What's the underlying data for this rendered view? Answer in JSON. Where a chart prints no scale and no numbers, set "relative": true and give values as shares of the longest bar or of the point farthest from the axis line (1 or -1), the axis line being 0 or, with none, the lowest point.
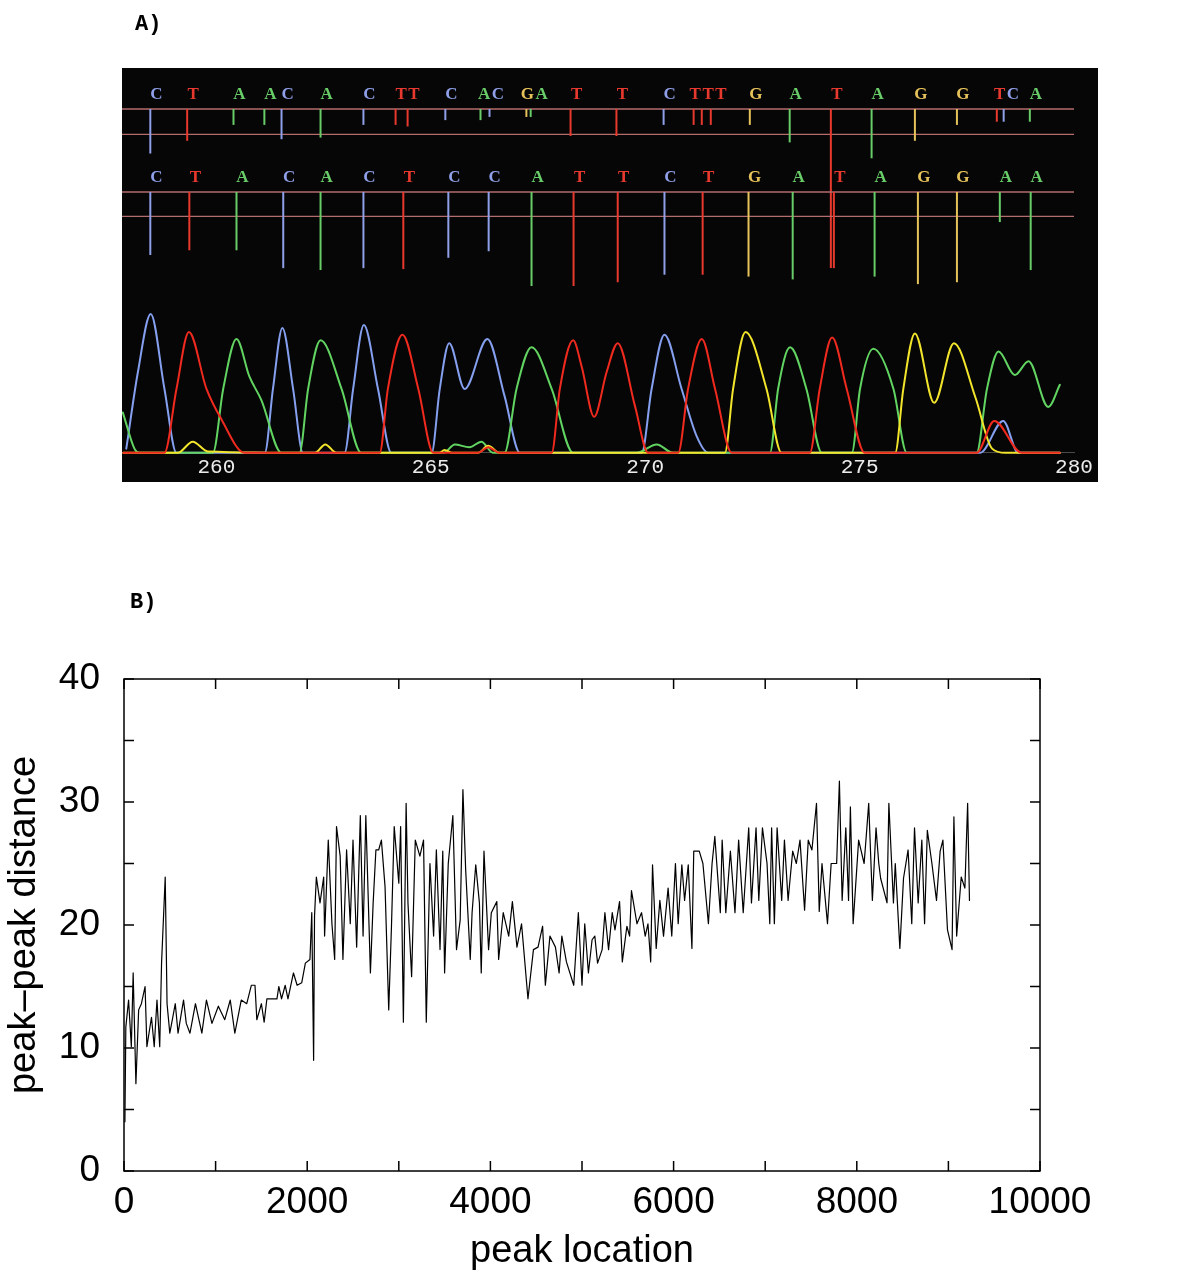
{
  "chart_data": [
    {
      "type": "bar",
      "title": "A)",
      "relative": true,
      "x": [
        258.46,
        259.32,
        260.4,
        261.12,
        261.52,
        262.43,
        263.43,
        264.18,
        264.46,
        265.34,
        266.16,
        266.37,
        267.23,
        267.33,
        268.26,
        269.33,
        270.43,
        271.13,
        271.32,
        271.53,
        272.44,
        273.37,
        274.33,
        275.28,
        276.29,
        277.27,
        278.2,
        278.36,
        278.97
      ],
      "values": [
        -0.28,
        -0.2,
        -0.1,
        -0.1,
        -0.19,
        -0.18,
        -0.1,
        -0.1,
        -0.11,
        -0.07,
        -0.07,
        -0.05,
        -0.05,
        -0.05,
        -0.17,
        -0.17,
        -0.1,
        -0.1,
        -0.1,
        -0.1,
        -0.1,
        -0.21,
        -1,
        -0.31,
        -0.2,
        -0.1,
        -0.08,
        -0.08,
        -0.08
      ],
      "colors": [
        "#8f9fe8",
        "#e8392e",
        "#68cc68",
        "#68cc68",
        "#8f9fe8",
        "#68cc68",
        "#8f9fe8",
        "#e8392e",
        "#e8392e",
        "#8f9fe8",
        "#68cc68",
        "#8f9fe8",
        "#e6c25a",
        "#68cc68",
        "#e8392e",
        "#e8392e",
        "#8f9fe8",
        "#e8392e",
        "#e8392e",
        "#e8392e",
        "#e6c25a",
        "#68cc68",
        "#e8392e",
        "#68cc68",
        "#e6c25a",
        "#e6c25a",
        "#e8392e",
        "#8f9fe8",
        "#68cc68"
      ],
      "xlim": [
        257.8,
        280
      ],
      "xticks": [
        260,
        265,
        270,
        275,
        280
      ],
      "tick_labels": false,
      "ref_lines": [
        {
          "axis": "y",
          "value": -0.16,
          "color": "#b46c6c"
        }
      ],
      "annotations": [
        "C",
        "T",
        "A",
        "A",
        "C",
        "A",
        "C",
        "T",
        "T",
        "C",
        "A",
        "C",
        "G",
        "A",
        "T",
        "T",
        "C",
        "T",
        "T",
        "T",
        "G",
        "A",
        "T",
        "A",
        "G",
        "G",
        "T",
        "C",
        "A"
      ]
    },
    {
      "type": "bar",
      "relative": true,
      "x": [
        258.46,
        259.37,
        260.47,
        261.56,
        262.43,
        263.43,
        264.36,
        265.41,
        266.35,
        267.35,
        268.33,
        269.36,
        270.45,
        271.34,
        272.41,
        273.44,
        274.4,
        275.35,
        276.36,
        277.27,
        278.27,
        278.99
      ],
      "values": [
        -0.67,
        -0.62,
        -0.62,
        -0.81,
        -0.83,
        -0.81,
        -0.82,
        -0.7,
        -0.63,
        -1,
        -1,
        -0.96,
        -0.88,
        -0.88,
        -0.9,
        -0.93,
        -0.81,
        -0.9,
        -0.98,
        -0.96,
        -0.32,
        -0.83
      ],
      "colors": [
        "#8f9fe8",
        "#e8392e",
        "#68cc68",
        "#8f9fe8",
        "#68cc68",
        "#8f9fe8",
        "#e8392e",
        "#8f9fe8",
        "#8f9fe8",
        "#68cc68",
        "#e8392e",
        "#e8392e",
        "#8f9fe8",
        "#e8392e",
        "#e6c25a",
        "#68cc68",
        "#e8392e",
        "#68cc68",
        "#e6c25a",
        "#e6c25a",
        "#68cc68",
        "#68cc68"
      ],
      "xlim": [
        257.8,
        280
      ],
      "xticks": [
        260,
        265,
        270,
        275,
        280
      ],
      "tick_labels": false,
      "ref_lines": [
        {
          "axis": "y",
          "value": -0.26,
          "color": "#b46c6c"
        }
      ],
      "annotations": [
        "C",
        "T",
        "A",
        "C",
        "A",
        "C",
        "T",
        "C",
        "C",
        "A",
        "T",
        "T",
        "C",
        "T",
        "G",
        "A",
        "T",
        "A",
        "G",
        "G",
        "A",
        "A"
      ]
    },
    {
      "type": "line",
      "relative": true,
      "xlim": [
        257.8,
        280
      ],
      "xticks": [
        260,
        265,
        270,
        275,
        280
      ],
      "tick_labels": "x",
      "series": [
        {
          "color": "#86a0f0",
          "x": [
            257.9,
            258.17,
            258.47,
            258.79,
            259.07,
            261.13,
            261.32,
            261.54,
            261.79,
            262.02,
            262.99,
            263.19,
            263.44,
            263.77,
            264.08,
            265.02,
            265.21,
            265.43,
            265.79,
            266.32,
            266.72,
            267.08,
            269.92,
            270.15,
            270.45,
            270.85,
            271.2,
            271.47,
            277.81,
            278.35,
            278.7,
            279.67
          ],
          "values": [
            0.03,
            0.58,
            1,
            0.46,
            0,
            0,
            0.46,
            0.9,
            0.46,
            0,
            0,
            0.46,
            0.92,
            0.46,
            0,
            0,
            0.46,
            0.79,
            0.46,
            0.82,
            0.41,
            0,
            0,
            0.46,
            0.85,
            0.46,
            0.12,
            0,
            0,
            0.23,
            0,
            0
          ]
        },
        {
          "color": "#62d462",
          "x": [
            257.82,
            258.09,
            258.2,
            259.92,
            260.16,
            260.47,
            260.77,
            261.05,
            261.52,
            261.94,
            262.14,
            262.43,
            262.92,
            263.38,
            265.3,
            265.56,
            265.9,
            266.18,
            266.45,
            266.72,
            267,
            267.35,
            267.82,
            268.32,
            269.8,
            270.27,
            270.65,
            272.91,
            273.1,
            273.38,
            273.76,
            274.12,
            274.82,
            275.01,
            275.32,
            275.79,
            276.1,
            277.73,
            277.97,
            278.24,
            278.62,
            278.94,
            279.4,
            279.67
          ],
          "values": [
            0.29,
            0.03,
            0,
            0,
            0.46,
            0.82,
            0.55,
            0.38,
            0,
            0,
            0.46,
            0.81,
            0.46,
            0,
            0,
            0.06,
            0.04,
            0.08,
            0,
            0,
            0.46,
            0.76,
            0.46,
            0,
            0,
            0.06,
            0,
            0,
            0.46,
            0.76,
            0.46,
            0,
            0,
            0.46,
            0.75,
            0.46,
            0,
            0,
            0.46,
            0.73,
            0.56,
            0.66,
            0.33,
            0.49
          ]
        },
        {
          "color": "#f2e52c",
          "x": [
            257.83,
            259.1,
            259.45,
            259.8,
            262.3,
            262.54,
            262.8,
            265.2,
            265.32,
            265.5,
            266.1,
            266.34,
            266.6,
            271.86,
            272.05,
            272.34,
            272.83,
            273.18,
            275.83,
            276.02,
            276.29,
            276.74,
            277.2,
            277.7,
            278.09,
            278.4,
            279.67
          ],
          "values": [
            0,
            0,
            0.08,
            0.01,
            0,
            0.06,
            0,
            0,
            0.02,
            0,
            0,
            0.05,
            0,
            0,
            0.46,
            0.87,
            0.46,
            0,
            0,
            0.46,
            0.86,
            0.36,
            0.79,
            0.4,
            0.03,
            0,
            0
          ]
        },
        {
          "color": "#f02a1e",
          "x": [
            257.83,
            258.79,
            259.07,
            259.36,
            259.77,
            260.12,
            260.66,
            263.81,
            264,
            264.34,
            264.71,
            265.06,
            266.1,
            266.34,
            266.6,
            267.82,
            268.01,
            268.32,
            268.52,
            268.81,
            269.1,
            269.36,
            269.76,
            270.07,
            270.77,
            271,
            271.32,
            271.63,
            272.02,
            273.84,
            274.07,
            274.36,
            274.7,
            275.12,
            277.73,
            278.14,
            278.78,
            279.67
          ],
          "values": [
            0,
            0,
            0.46,
            0.87,
            0.46,
            0.24,
            0,
            0,
            0.46,
            0.85,
            0.46,
            0,
            0,
            0.04,
            0,
            0,
            0.46,
            0.81,
            0.62,
            0.26,
            0.58,
            0.79,
            0.34,
            0,
            0,
            0.46,
            0.82,
            0.46,
            0,
            0,
            0.46,
            0.83,
            0.46,
            0,
            0,
            0.23,
            0,
            0
          ]
        }
      ]
    },
    {
      "type": "line",
      "title": "B)",
      "xlabel": "peak location",
      "ylabel": "peak–peak distance",
      "color": "#000000",
      "xlim": [
        0,
        10000
      ],
      "ylim": [
        0,
        40
      ],
      "xticks": [
        0,
        {
          "value": 1000,
          "label": null
        },
        2000,
        {
          "value": 3000,
          "label": null
        },
        4000,
        {
          "value": 5000,
          "label": null
        },
        6000,
        {
          "value": 7000,
          "label": null
        },
        8000,
        {
          "value": 9000,
          "label": null
        },
        10000
      ],
      "yticks": [
        0,
        {
          "value": 5,
          "label": null
        },
        10,
        {
          "value": 15,
          "label": null
        },
        20,
        {
          "value": 25,
          "label": null
        },
        30,
        {
          "value": 35,
          "label": null
        },
        40
      ],
      "x": [
        10,
        20,
        50,
        80,
        100,
        130,
        160,
        190,
        230,
        250,
        300,
        330,
        360,
        390,
        410,
        450,
        470,
        500,
        560,
        590,
        650,
        680,
        720,
        780,
        850,
        900,
        960,
        1030,
        1100,
        1160,
        1210,
        1280,
        1340,
        1390,
        1430,
        1450,
        1500,
        1530,
        1560,
        1670,
        1690,
        1720,
        1760,
        1790,
        1850,
        1890,
        1940,
        1980,
        2030,
        2050,
        2070,
        2080,
        2100,
        2140,
        2180,
        2190,
        2230,
        2270,
        2300,
        2320,
        2360,
        2390,
        2430,
        2470,
        2500,
        2540,
        2580,
        2610,
        2640,
        2690,
        2720,
        2750,
        2780,
        2810,
        2850,
        2890,
        2920,
        2950,
        3000,
        3020,
        3050,
        3080,
        3100,
        3140,
        3180,
        3230,
        3270,
        3300,
        3340,
        3380,
        3410,
        3450,
        3480,
        3500,
        3540,
        3590,
        3630,
        3670,
        3700,
        3730,
        3780,
        3800,
        3840,
        3880,
        3900,
        3930,
        3980,
        4010,
        4070,
        4090,
        4140,
        4200,
        4240,
        4290,
        4340,
        4410,
        4470,
        4520,
        4570,
        4600,
        4650,
        4710,
        4750,
        4780,
        4830,
        4910,
        4960,
        5000,
        5030,
        5070,
        5110,
        5140,
        5170,
        5220,
        5250,
        5290,
        5330,
        5360,
        5410,
        5440,
        5490,
        5520,
        5540,
        5600,
        5650,
        5690,
        5720,
        5750,
        5770,
        5810,
        5850,
        5890,
        5940,
        5980,
        6020,
        6050,
        6090,
        6120,
        6160,
        6200,
        6220,
        6280,
        6320,
        6380,
        6420,
        6450,
        6510,
        6530,
        6570,
        6620,
        6670,
        6710,
        6760,
        6820,
        6850,
        6900,
        6930,
        6970,
        7020,
        7050,
        7070,
        7100,
        7130,
        7180,
        7210,
        7250,
        7300,
        7340,
        7380,
        7430,
        7470,
        7510,
        7560,
        7590,
        7620,
        7680,
        7720,
        7780,
        7810,
        7840,
        7880,
        7910,
        7930,
        7960,
        8020,
        8080,
        8110,
        8130,
        8170,
        8210,
        8240,
        8260,
        8330,
        8350,
        8400,
        8420,
        8470,
        8510,
        8560,
        8600,
        8630,
        8670,
        8710,
        8740,
        8770,
        8820,
        8870,
        8910,
        8940,
        8990,
        9040,
        9060,
        9090,
        9140,
        9180,
        9210,
        9230
      ],
      "values": [
        4,
        11.7,
        13.9,
        10.1,
        16.1,
        7.1,
        13.1,
        13.6,
        15,
        10.1,
        12.5,
        10.1,
        13.9,
        10.1,
        16.9,
        23.9,
        13.6,
        11.2,
        13.6,
        11.2,
        13.9,
        12,
        11.2,
        13.6,
        11.2,
        13.9,
        12,
        13.4,
        12.3,
        13.9,
        11.2,
        13.9,
        13.6,
        15.1,
        15.1,
        12.3,
        13.6,
        12.1,
        14,
        14,
        15,
        14,
        15.1,
        14,
        16.1,
        15.1,
        15.3,
        16.9,
        17.2,
        21,
        9,
        20.7,
        23.9,
        21.8,
        23.9,
        19.1,
        26.9,
        20.1,
        17.2,
        28,
        25.6,
        17.2,
        26.1,
        20.1,
        26.9,
        18.2,
        28.9,
        19.1,
        28.9,
        16.1,
        21.8,
        26.1,
        26.1,
        26.9,
        23.1,
        13.1,
        19.9,
        28,
        23.4,
        28,
        12.1,
        29.9,
        21.8,
        15.8,
        26.9,
        25.6,
        26.9,
        12.1,
        25,
        19.1,
        26.1,
        18,
        26,
        16.1,
        25,
        28.9,
        18,
        20.4,
        31,
        24.5,
        17.2,
        21,
        24.9,
        21.8,
        16.1,
        26,
        18,
        21,
        21.9,
        17.2,
        21,
        19.1,
        21.9,
        18.2,
        20.1,
        14,
        18,
        18.2,
        19.9,
        15.1,
        19.1,
        18.2,
        16.1,
        19.1,
        17,
        15.1,
        21,
        15.1,
        20.1,
        16.1,
        18.8,
        19.1,
        16.9,
        18,
        21,
        18,
        21,
        19.6,
        21.9,
        17,
        19.9,
        19.1,
        22.8,
        20.1,
        21,
        19.1,
        20.1,
        17,
        24.9,
        18.1,
        22,
        19.1,
        23,
        19.1,
        25,
        20.1,
        24.9,
        22,
        24.9,
        18.1,
        26,
        26,
        25,
        20.1,
        25,
        27.2,
        21,
        26.9,
        21,
        26,
        21,
        26.9,
        21,
        27.9,
        21.8,
        27.9,
        22,
        27.9,
        25,
        20.1,
        27.9,
        20.1,
        27.9,
        22,
        26.9,
        22,
        26,
        25,
        26.9,
        21.2,
        26.9,
        26.1,
        29.9,
        21.1,
        25,
        20.1,
        25,
        25,
        31.7,
        22,
        27.9,
        22,
        29.6,
        20.1,
        26.9,
        25,
        27.9,
        29.9,
        22,
        27.9,
        25,
        23.8,
        21.8,
        29.9,
        21.8,
        25,
        18.1,
        23.8,
        26.1,
        20.1,
        27.9,
        21.8,
        26.9,
        20.1,
        27.7,
        25,
        22,
        26,
        26.9,
        19.6,
        18,
        28.8,
        19.1,
        23.9,
        23,
        29.9,
        22
      ]
    }
  ]
}
